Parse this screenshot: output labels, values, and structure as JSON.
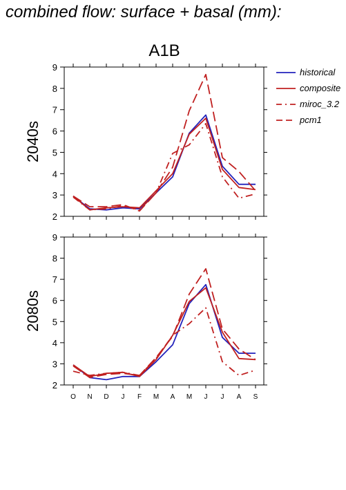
{
  "title": "combined flow: surface + basal (mm):",
  "chart_data": {
    "type": "line",
    "scenario": "A1B",
    "categories": [
      "O",
      "N",
      "D",
      "J",
      "F",
      "M",
      "A",
      "M",
      "J",
      "J",
      "A",
      "S"
    ],
    "ylim": [
      2,
      9
    ],
    "yticks": [
      2,
      3,
      4,
      5,
      6,
      7,
      8,
      9
    ],
    "legend": [
      {
        "name": "historical",
        "color": "#2222bb",
        "dash": "solid"
      },
      {
        "name": "composite",
        "color": "#c02020",
        "dash": "solid"
      },
      {
        "name": "miroc_3.2",
        "color": "#c02020",
        "dash": "dashdot"
      },
      {
        "name": "pcm1",
        "color": "#c02020",
        "dash": "dashed"
      }
    ],
    "panels": [
      {
        "label": "2040s",
        "series": [
          {
            "name": "historical",
            "values": [
              2.95,
              2.35,
              2.3,
              2.4,
              2.35,
              3.1,
              3.85,
              5.9,
              6.75,
              4.35,
              3.5,
              3.5
            ]
          },
          {
            "name": "composite",
            "values": [
              2.95,
              2.3,
              2.4,
              2.45,
              2.4,
              3.2,
              4.0,
              5.85,
              6.6,
              4.2,
              3.35,
              3.25
            ]
          },
          {
            "name": "miroc_3.2",
            "values": [
              2.9,
              2.3,
              2.35,
              2.5,
              2.3,
              3.1,
              4.95,
              5.35,
              6.35,
              3.85,
              2.85,
              3.05
            ]
          },
          {
            "name": "pcm1",
            "values": [
              2.95,
              2.45,
              2.45,
              2.55,
              2.25,
              3.1,
              4.3,
              6.95,
              8.65,
              4.75,
              4.1,
              3.2
            ]
          }
        ]
      },
      {
        "label": "2080s",
        "series": [
          {
            "name": "historical",
            "values": [
              2.95,
              2.35,
              2.25,
              2.4,
              2.4,
              3.1,
              3.9,
              5.85,
              6.75,
              4.25,
              3.5,
              3.5
            ]
          },
          {
            "name": "composite",
            "values": [
              2.95,
              2.4,
              2.55,
              2.6,
              2.4,
              3.2,
              4.35,
              5.95,
              6.6,
              4.5,
              3.25,
              3.2
            ]
          },
          {
            "name": "miroc_3.2",
            "values": [
              2.65,
              2.45,
              2.55,
              2.6,
              2.45,
              3.25,
              4.35,
              4.9,
              5.65,
              3.1,
              2.45,
              2.7
            ]
          },
          {
            "name": "pcm1",
            "values": [
              2.9,
              2.35,
              2.5,
              2.55,
              2.45,
              3.3,
              4.3,
              6.3,
              7.5,
              4.65,
              3.7,
              3.2
            ]
          }
        ]
      }
    ]
  }
}
